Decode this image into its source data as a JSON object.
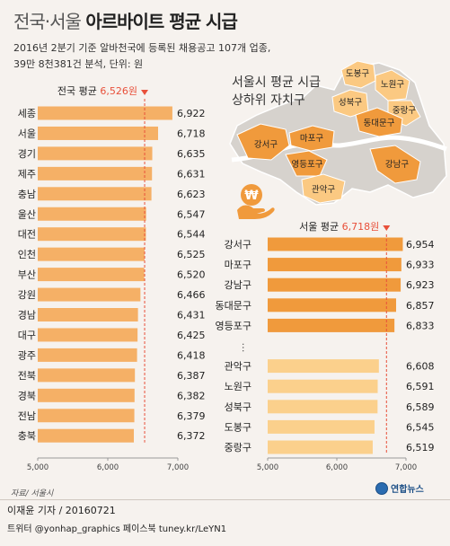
{
  "title_part1": "전국·서울 ",
  "title_part2": "아르바이트 평균 시급",
  "subtitle": "2016년 2분기 기준 알바천국에 등록된 채용공고 107개 업종,\n39만 8천381건 분석, 단위: 원",
  "map_title": "서울시 평균 시급\n상하위 자치구",
  "source": "자료/ 서울시",
  "footer_author": "이재윤 기자 / 20160721",
  "footer_twitter": "트위터 @yonhap_graphics  페이스북 tuney.kr/LeYN1",
  "logo_text": "연합뉴스",
  "map_icon": "won-hand-icon",
  "colors": {
    "bar": "#f5b066",
    "bar_top": "#f09a3c",
    "bar_bottom": "#fbd08c",
    "avg_line": "#e8503a",
    "map_base": "#d6d2cd",
    "map_top": "#f09a3c",
    "map_bottom": "#fbc982"
  },
  "map_districts": {
    "top": [
      "마포구",
      "강서구",
      "영등포구",
      "동대문구",
      "강남구"
    ],
    "bottom": [
      "도봉구",
      "노원구",
      "성북구",
      "중랑구",
      "관악구"
    ]
  },
  "chart_data": [
    {
      "type": "bar",
      "orientation": "horizontal",
      "title": "전국",
      "categories": [
        "세종",
        "서울",
        "경기",
        "제주",
        "충남",
        "울산",
        "대전",
        "인천",
        "부산",
        "강원",
        "경남",
        "대구",
        "광주",
        "전북",
        "경북",
        "전남",
        "충북"
      ],
      "values": [
        6922,
        6718,
        6635,
        6631,
        6623,
        6547,
        6544,
        6525,
        6520,
        6466,
        6431,
        6425,
        6418,
        6387,
        6382,
        6379,
        6372
      ],
      "average_label": "전국 평균 ",
      "average_value_label": "6,526원",
      "average": 6526,
      "xlim": [
        5000,
        7000
      ],
      "ticks": [
        5000,
        6000,
        7000
      ],
      "tick_labels": [
        "5,000",
        "6,000",
        "7,000"
      ],
      "value_labels": [
        "6,922",
        "6,718",
        "6,635",
        "6,631",
        "6,623",
        "6,547",
        "6,544",
        "6,525",
        "6,520",
        "6,466",
        "6,431",
        "6,425",
        "6,418",
        "6,387",
        "6,382",
        "6,379",
        "6,372"
      ]
    },
    {
      "type": "bar",
      "orientation": "horizontal",
      "title": "서울",
      "categories": [
        "강서구",
        "마포구",
        "강남구",
        "동대문구",
        "영등포구",
        "관악구",
        "노원구",
        "성북구",
        "도봉구",
        "중랑구"
      ],
      "values": [
        6954,
        6933,
        6923,
        6857,
        6833,
        6608,
        6591,
        6589,
        6545,
        6519
      ],
      "groups": [
        "top",
        "top",
        "top",
        "top",
        "top",
        "bottom",
        "bottom",
        "bottom",
        "bottom",
        "bottom"
      ],
      "average_label": "서울 평균 ",
      "average_value_label": "6,718원",
      "average": 6718,
      "xlim": [
        5000,
        7000
      ],
      "ticks": [
        5000,
        6000,
        7000
      ],
      "tick_labels": [
        "5,000",
        "6,000",
        "7,000"
      ],
      "value_labels": [
        "6,954",
        "6,933",
        "6,923",
        "6,857",
        "6,833",
        "6,608",
        "6,591",
        "6,589",
        "6,545",
        "6,519"
      ]
    }
  ]
}
